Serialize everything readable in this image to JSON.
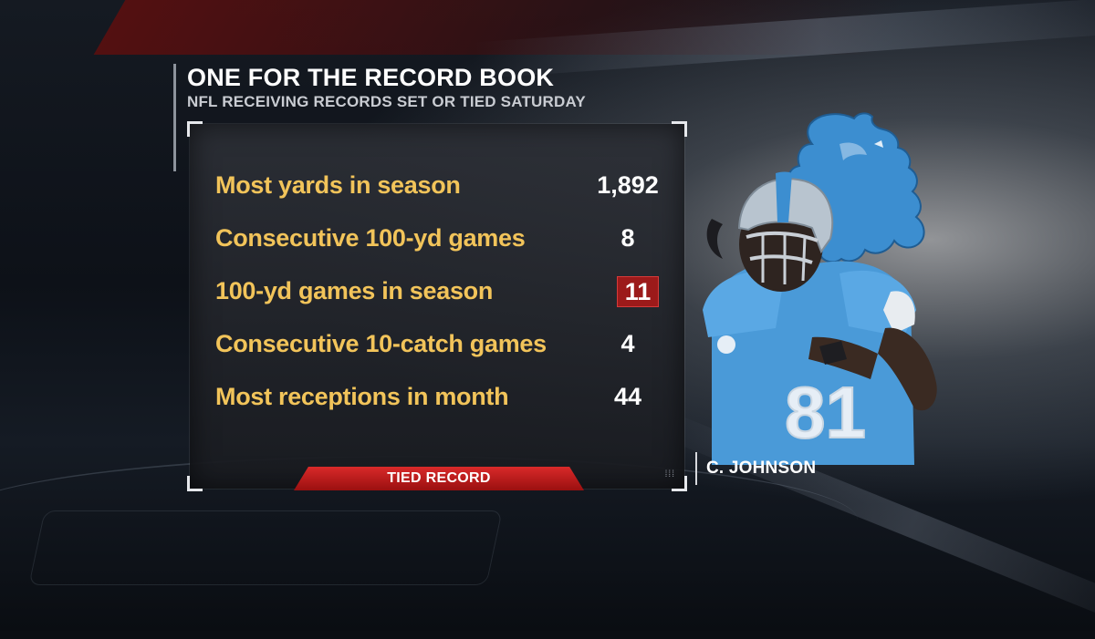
{
  "header": {
    "title": "ONE FOR THE RECORD BOOK",
    "subtitle": "NFL RECEIVING RECORDS SET OR TIED SATURDAY"
  },
  "records": [
    {
      "label": "Most yards in season",
      "value": "1,892",
      "tied": false
    },
    {
      "label": "Consecutive 100-yd games",
      "value": "8",
      "tied": false
    },
    {
      "label": "100-yd games in season",
      "value": "11",
      "tied": true
    },
    {
      "label": "Consecutive 10-catch games",
      "value": "4",
      "tied": false
    },
    {
      "label": "Most receptions in month",
      "value": "44",
      "tied": false
    }
  ],
  "legend": {
    "tied_label": "TIED RECORD"
  },
  "player": {
    "name": "C. JOHNSON",
    "jersey_number": "81"
  },
  "colors": {
    "label_gold": "#f2c45a",
    "tied_red": "#9c1a1a",
    "team_blue": "#3c8ed0"
  },
  "icons": {
    "team_logo": "lion-logo-icon"
  }
}
